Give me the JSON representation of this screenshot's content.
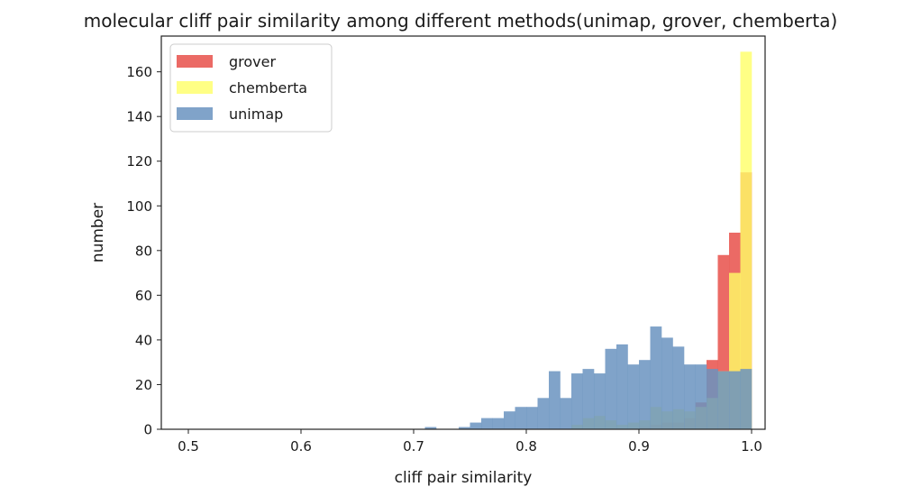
{
  "chart_data": {
    "type": "bar",
    "title": "molecular cliff pair similarity among different methods(unimap, grover, chemberta)",
    "xlabel": "cliff pair similarity",
    "ylabel": "number",
    "xlim": [
      0.476,
      1.012
    ],
    "ylim": [
      0,
      176
    ],
    "xticks": [
      0.5,
      0.6,
      0.7,
      0.8,
      0.9,
      1.0
    ],
    "xtick_labels": [
      "0.5",
      "0.6",
      "0.7",
      "0.8",
      "0.9",
      "1.0"
    ],
    "yticks": [
      0,
      20,
      40,
      60,
      80,
      100,
      120,
      140,
      160
    ],
    "ytick_labels": [
      "0",
      "20",
      "40",
      "60",
      "80",
      "100",
      "120",
      "140",
      "160"
    ],
    "grid": false,
    "legend_position": "top-left",
    "bins": [
      0.5,
      0.51,
      0.52,
      0.53,
      0.54,
      0.55,
      0.56,
      0.57,
      0.58,
      0.59,
      0.6,
      0.61,
      0.62,
      0.63,
      0.64,
      0.65,
      0.66,
      0.67,
      0.68,
      0.69,
      0.7,
      0.71,
      0.72,
      0.73,
      0.74,
      0.75,
      0.76,
      0.77,
      0.78,
      0.79,
      0.8,
      0.81,
      0.82,
      0.83,
      0.84,
      0.85,
      0.86,
      0.87,
      0.88,
      0.89,
      0.9,
      0.91,
      0.92,
      0.93,
      0.94,
      0.95,
      0.96,
      0.97,
      0.98,
      0.99
    ],
    "series": [
      {
        "name": "grover",
        "color": "#e8504a",
        "opacity": 0.85,
        "values": [
          0,
          0,
          0,
          0,
          0,
          0,
          0,
          0,
          0,
          0,
          0,
          0,
          0,
          0,
          0,
          0,
          0,
          0,
          0,
          0,
          0,
          0,
          0,
          0,
          0,
          0,
          0,
          0,
          0,
          0,
          0,
          0,
          0,
          0,
          0,
          0,
          0,
          0,
          0,
          0,
          1,
          2,
          3,
          3,
          5,
          12,
          31,
          78,
          88,
          115
        ]
      },
      {
        "name": "chemberta",
        "color": "#ffff66",
        "opacity": 0.8,
        "values": [
          0,
          0,
          0,
          0,
          0,
          0,
          0,
          0,
          0,
          0,
          0,
          0,
          0,
          0,
          0,
          0,
          0,
          0,
          0,
          0,
          0,
          0,
          0,
          0,
          0,
          0,
          0,
          0,
          0,
          0,
          0,
          0,
          0,
          0,
          2,
          5,
          6,
          4,
          2,
          3,
          4,
          10,
          8,
          9,
          8,
          10,
          14,
          26,
          70,
          169
        ]
      },
      {
        "name": "unimap",
        "color": "#6a93c0",
        "opacity": 0.85,
        "values": [
          0,
          0,
          0,
          0,
          0,
          0,
          0,
          0,
          0,
          0,
          0,
          0,
          0,
          0,
          0,
          0,
          0,
          0,
          0,
          0,
          0,
          1,
          0,
          0,
          1,
          3,
          5,
          5,
          8,
          10,
          10,
          14,
          26,
          14,
          25,
          27,
          25,
          36,
          38,
          29,
          31,
          46,
          41,
          37,
          29,
          29,
          27,
          26,
          26,
          27
        ]
      }
    ]
  }
}
